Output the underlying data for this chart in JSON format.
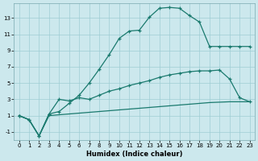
{
  "xlabel": "Humidex (Indice chaleur)",
  "ylabel": "",
  "bg_color": "#cce8ed",
  "grid_color": "#9fcdd4",
  "line_color": "#1a7a6e",
  "xlim": [
    -0.5,
    23.5
  ],
  "ylim": [
    -2.0,
    14.8
  ],
  "yticks": [
    -1,
    1,
    3,
    5,
    7,
    9,
    11,
    13
  ],
  "xticks": [
    0,
    1,
    2,
    3,
    4,
    5,
    6,
    7,
    8,
    9,
    10,
    11,
    12,
    13,
    14,
    15,
    16,
    17,
    18,
    19,
    20,
    21,
    22,
    23
  ],
  "series1_x": [
    0,
    1,
    2,
    3,
    4,
    5,
    6,
    7,
    8,
    9,
    10,
    11,
    12,
    13,
    14,
    15,
    16,
    17,
    18,
    19,
    20,
    21,
    22,
    23
  ],
  "series1_y": [
    1.0,
    0.5,
    -1.5,
    1.2,
    1.5,
    2.5,
    3.5,
    5.0,
    6.7,
    8.5,
    10.5,
    11.4,
    11.5,
    13.1,
    14.2,
    14.3,
    14.2,
    13.3,
    12.5,
    9.5,
    9.5,
    9.5,
    9.5,
    9.5
  ],
  "series2_x": [
    0,
    1,
    2,
    3,
    4,
    5,
    6,
    7,
    8,
    9,
    10,
    11,
    12,
    13,
    14,
    15,
    16,
    17,
    18,
    19,
    20,
    21,
    22,
    23
  ],
  "series2_y": [
    1.0,
    0.5,
    -1.5,
    1.2,
    3.0,
    2.8,
    3.2,
    3.0,
    3.5,
    4.0,
    4.3,
    4.7,
    5.0,
    5.3,
    5.7,
    6.0,
    6.2,
    6.4,
    6.5,
    6.5,
    6.6,
    5.5,
    3.2,
    2.7
  ],
  "series3_x": [
    0,
    1,
    2,
    3,
    4,
    5,
    6,
    7,
    8,
    9,
    10,
    11,
    12,
    13,
    14,
    15,
    16,
    17,
    18,
    19,
    20,
    21,
    22,
    23
  ],
  "series3_y": [
    1.0,
    0.5,
    -1.5,
    1.0,
    1.1,
    1.2,
    1.3,
    1.4,
    1.5,
    1.6,
    1.7,
    1.8,
    1.9,
    2.0,
    2.1,
    2.2,
    2.3,
    2.4,
    2.5,
    2.6,
    2.65,
    2.7,
    2.7,
    2.7
  ]
}
